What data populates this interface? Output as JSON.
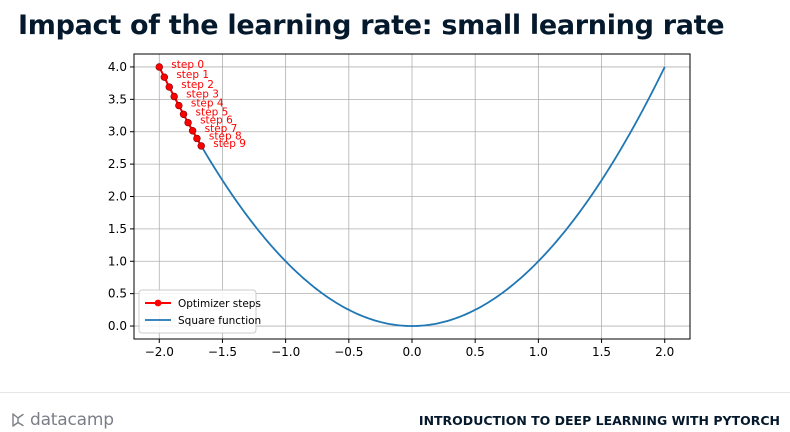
{
  "slide": {
    "title": "Impact of the learning rate: small learning rate"
  },
  "footer": {
    "brand": "datacamp",
    "brand_icon": "datacamp-logo-icon",
    "course_title": "INTRODUCTION TO DEEP LEARNING WITH PYTORCH"
  },
  "chart_data": {
    "type": "line",
    "title": "",
    "xlabel": "",
    "ylabel": "",
    "xlim": [
      -2.2,
      2.2
    ],
    "ylim": [
      -0.2,
      4.2
    ],
    "x_ticks": [
      -2.0,
      -1.5,
      -1.0,
      -0.5,
      0.0,
      0.5,
      1.0,
      1.5,
      2.0
    ],
    "x_tick_labels": [
      "−2.0",
      "−1.5",
      "−1.0",
      "−0.5",
      "0.0",
      "0.5",
      "1.0",
      "1.5",
      "2.0"
    ],
    "y_ticks": [
      0.0,
      0.5,
      1.0,
      1.5,
      2.0,
      2.5,
      3.0,
      3.5,
      4.0
    ],
    "y_tick_labels": [
      "0.0",
      "0.5",
      "1.0",
      "1.5",
      "2.0",
      "2.5",
      "3.0",
      "3.5",
      "4.0"
    ],
    "grid": true,
    "legend_position": "lower-left",
    "series": [
      {
        "name": "Optimizer steps",
        "kind": "line-with-markers",
        "color": "#ff0000",
        "x": [
          -2.0,
          -1.96,
          -1.921,
          -1.882,
          -1.845,
          -1.808,
          -1.772,
          -1.736,
          -1.702,
          -1.668
        ],
        "y": [
          4.0,
          3.842,
          3.69,
          3.544,
          3.404,
          3.269,
          3.14,
          3.015,
          2.896,
          2.781
        ],
        "point_labels": [
          "step 0",
          "step 1",
          "step 2",
          "step 3",
          "step 4",
          "step 5",
          "step 6",
          "step 7",
          "step 8",
          "step 9"
        ]
      },
      {
        "name": "Square function",
        "kind": "line",
        "color": "#1f77b4",
        "function": "x^2",
        "x_range": [
          -2.0,
          2.0
        ]
      }
    ]
  }
}
